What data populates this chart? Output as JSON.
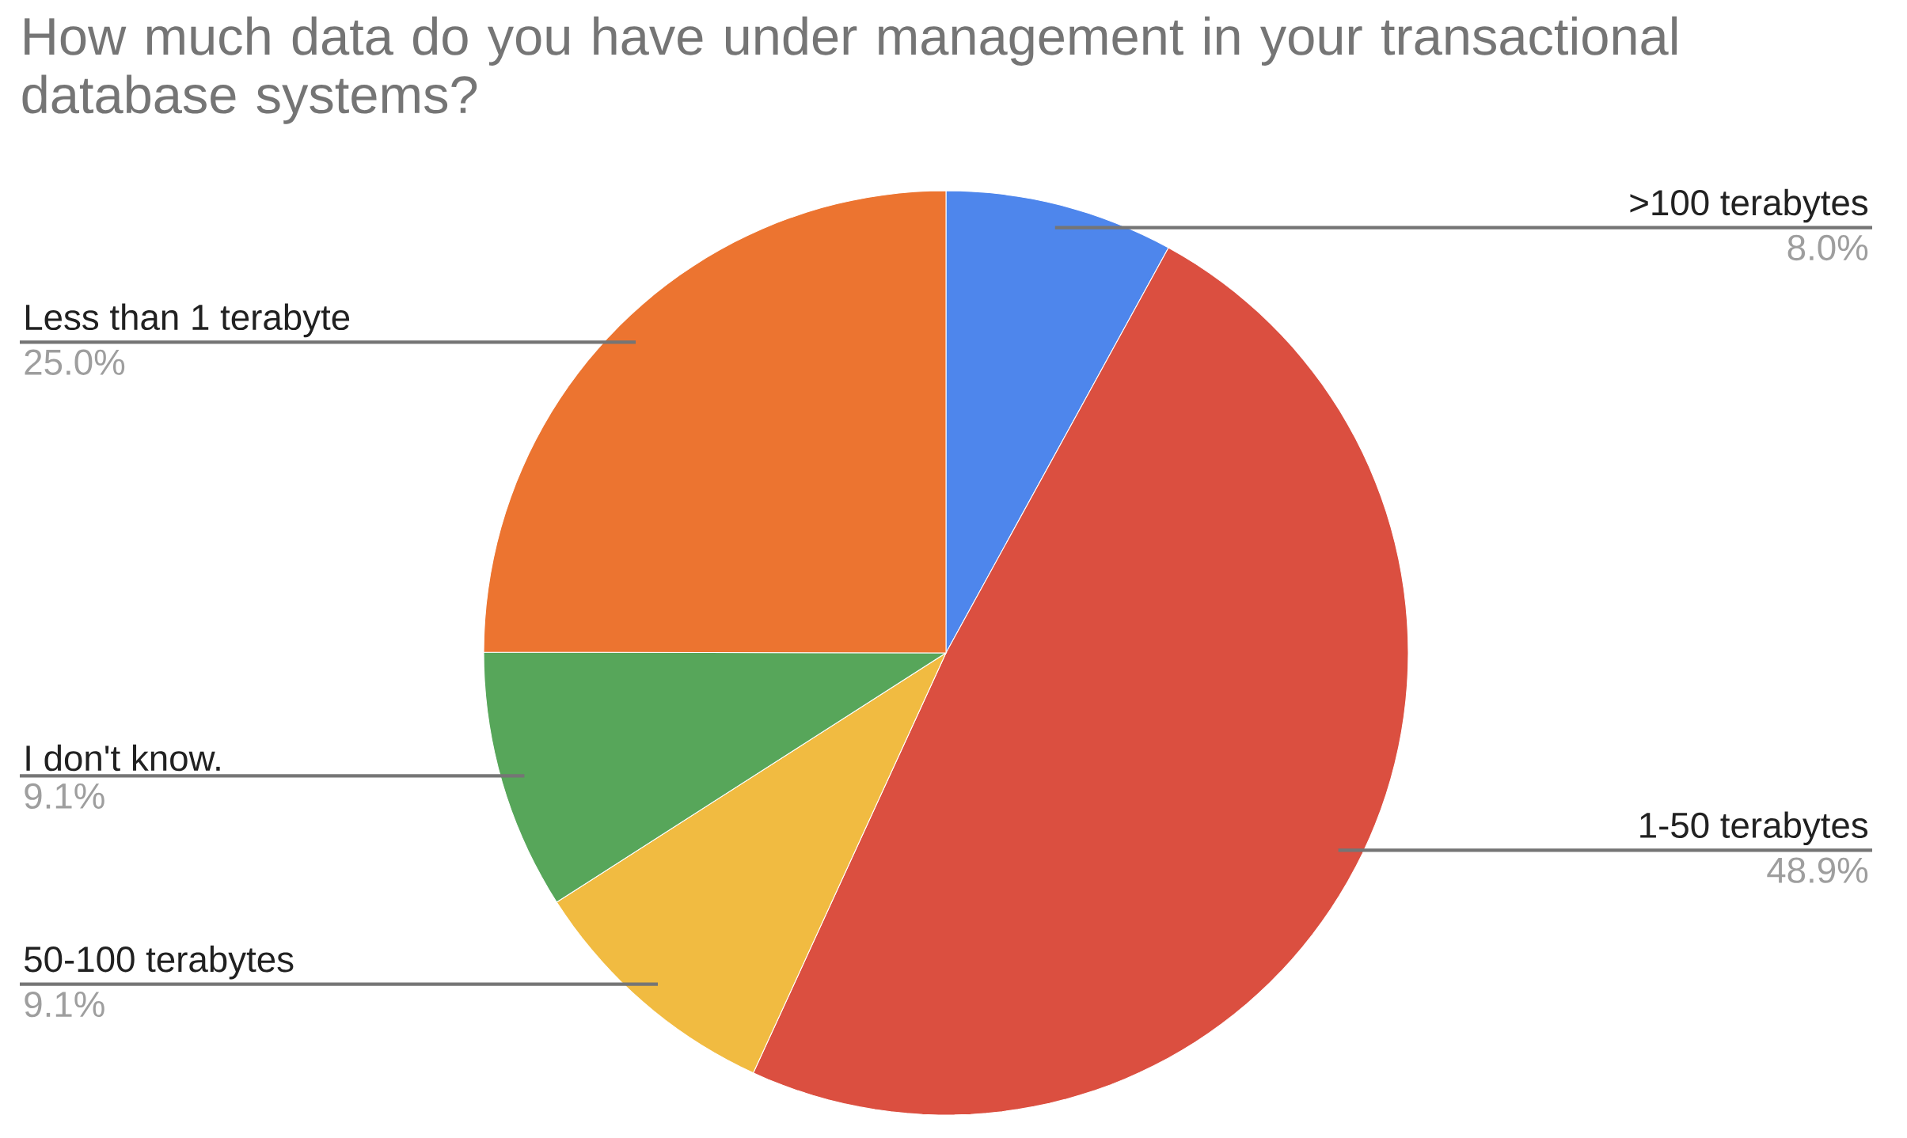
{
  "chart_data": {
    "type": "pie",
    "title": "How much data do you have under management in your transactional database systems?",
    "categories": [
      ">100 terabytes",
      "1-50 terabytes",
      "50-100 terabytes",
      "I don't know.",
      "Less than 1 terabyte"
    ],
    "values": [
      8.0,
      48.9,
      9.1,
      9.1,
      25.0
    ],
    "value_labels": [
      "8.0%",
      "48.9%",
      "9.1%",
      "9.1%",
      "25.0%"
    ],
    "colors": [
      "#4e86ec",
      "#db4f40",
      "#f1bb41",
      "#57a65a",
      "#ec7430"
    ]
  }
}
